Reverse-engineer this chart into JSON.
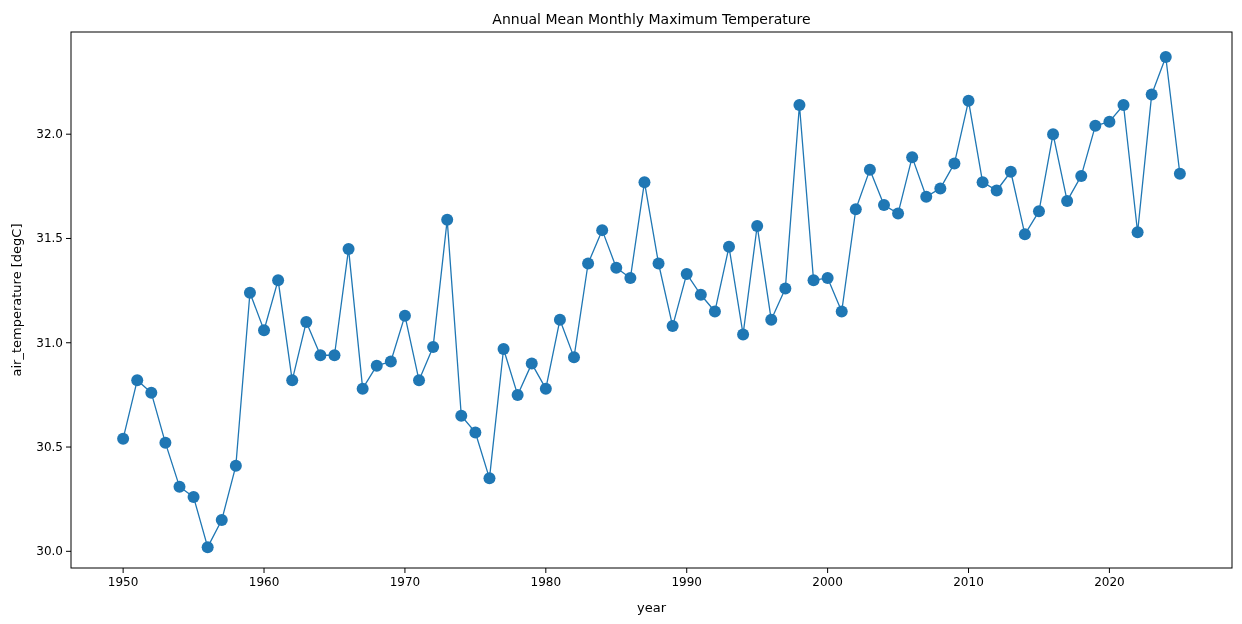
{
  "chart_data": {
    "type": "line",
    "title": "Annual Mean Monthly Maximum Temperature",
    "xlabel": "year",
    "ylabel": "air_temperature [degC]",
    "x": [
      1950,
      1951,
      1952,
      1953,
      1954,
      1955,
      1956,
      1957,
      1958,
      1959,
      1960,
      1961,
      1962,
      1963,
      1964,
      1965,
      1966,
      1967,
      1968,
      1969,
      1970,
      1971,
      1972,
      1973,
      1974,
      1975,
      1976,
      1977,
      1978,
      1979,
      1980,
      1981,
      1982,
      1983,
      1984,
      1985,
      1986,
      1987,
      1988,
      1989,
      1990,
      1991,
      1992,
      1993,
      1994,
      1995,
      1996,
      1997,
      1998,
      1999,
      2000,
      2001,
      2002,
      2003,
      2004,
      2005,
      2006,
      2007,
      2008,
      2009,
      2010,
      2011,
      2012,
      2013,
      2014,
      2015,
      2016,
      2017,
      2018,
      2019,
      2020,
      2021,
      2022,
      2023,
      2024,
      2025
    ],
    "series": [
      {
        "color": "#1f77b4",
        "values": [
          30.54,
          30.82,
          30.76,
          30.52,
          30.31,
          30.26,
          30.02,
          30.15,
          30.41,
          31.24,
          31.06,
          31.3,
          30.82,
          31.1,
          30.94,
          30.94,
          31.45,
          30.78,
          30.89,
          30.91,
          31.13,
          30.82,
          30.98,
          31.59,
          30.65,
          30.57,
          30.35,
          30.97,
          30.75,
          30.9,
          30.78,
          31.11,
          30.93,
          31.38,
          31.54,
          31.36,
          31.31,
          31.77,
          31.38,
          31.08,
          31.33,
          31.23,
          31.15,
          31.46,
          31.04,
          31.56,
          31.11,
          31.26,
          32.14,
          31.3,
          31.31,
          31.15,
          31.64,
          31.83,
          31.66,
          31.62,
          31.89,
          31.7,
          31.74,
          31.86,
          32.16,
          31.77,
          31.73,
          31.82,
          31.52,
          31.63,
          32.0,
          31.68,
          31.8,
          32.04,
          32.06,
          32.14,
          31.53,
          32.19,
          32.37,
          31.81
        ]
      }
    ],
    "xlim": [
      1946.3,
      2028.7
    ],
    "ylim": [
      29.92,
      32.49
    ],
    "xticks": [
      1950,
      1960,
      1970,
      1980,
      1990,
      2000,
      2010,
      2020
    ],
    "yticks": [
      {
        "value": 30,
        "label": "30.0"
      },
      {
        "value": 30.5,
        "label": "30.5"
      },
      {
        "value": 31,
        "label": "31.0"
      },
      {
        "value": 31.5,
        "label": "31.5"
      },
      {
        "value": 32,
        "label": "32.0"
      }
    ],
    "marker": "circle",
    "line_style": "solid",
    "grid": false
  }
}
